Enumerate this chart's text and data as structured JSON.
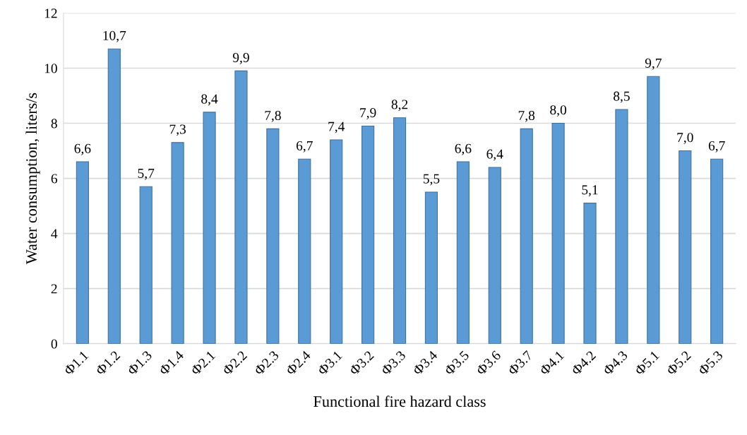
{
  "chart_data": {
    "type": "bar",
    "xlabel": "Functional fire hazard class",
    "ylabel": "Water consumption, liters/s",
    "categories": [
      "Ф1.1",
      "Ф1.2",
      "Ф1.3",
      "Ф1.4",
      "Ф2.1",
      "Ф2.2",
      "Ф2.3",
      "Ф2.4",
      "Ф3.1",
      "Ф3.2",
      "Ф3.3",
      "Ф3.4",
      "Ф3.5",
      "Ф3.6",
      "Ф3.7",
      "Ф4.1",
      "Ф4.2",
      "Ф4.3",
      "Ф5.1",
      "Ф5.2",
      "Ф5.3"
    ],
    "values": [
      6.6,
      10.7,
      5.7,
      7.3,
      8.4,
      9.9,
      7.8,
      6.7,
      7.4,
      7.9,
      8.2,
      5.5,
      6.6,
      6.4,
      7.8,
      8.0,
      5.1,
      8.5,
      9.7,
      7.0,
      6.7
    ],
    "value_labels": [
      "6,6",
      "10,7",
      "5,7",
      "7,3",
      "8,4",
      "9,9",
      "7,8",
      "6,7",
      "7,4",
      "7,9",
      "8,2",
      "5,5",
      "6,6",
      "6,4",
      "7,8",
      "8,0",
      "5,1",
      "8,5",
      "9,7",
      "7,0",
      "6,7"
    ],
    "color": "#5b9bd5",
    "ylim": [
      0,
      12
    ],
    "yticks": [
      0,
      2,
      4,
      6,
      8,
      10,
      12
    ],
    "grid": "y",
    "legend": false
  }
}
